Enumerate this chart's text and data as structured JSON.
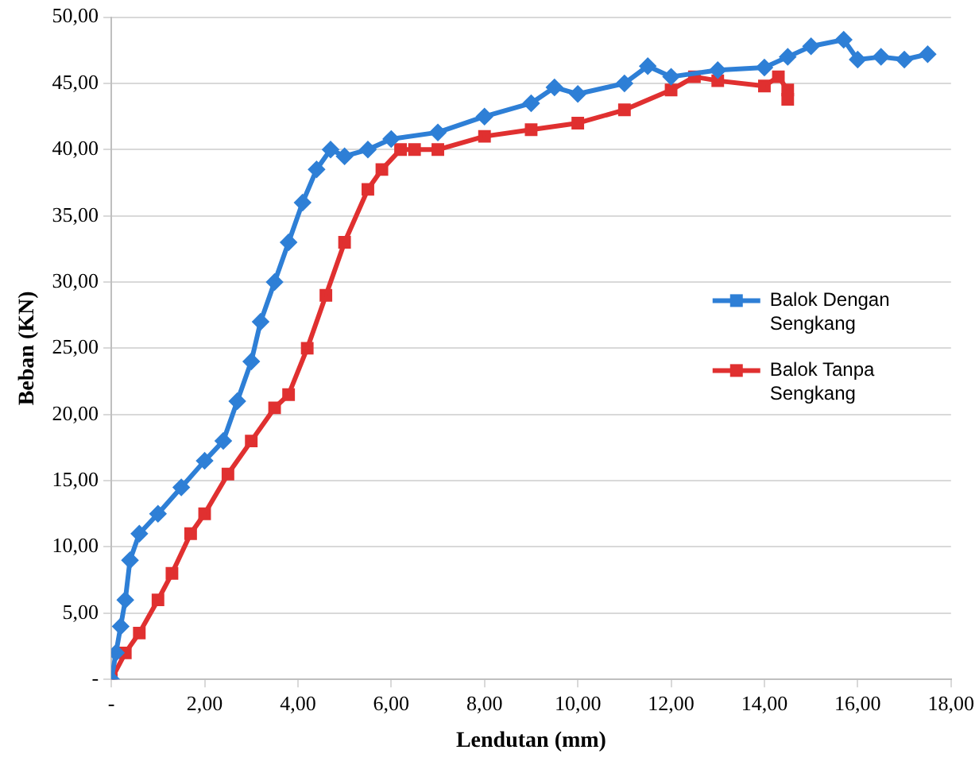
{
  "chart_data": {
    "type": "line",
    "xlabel": "Lendutan (mm)",
    "ylabel": "Beban (KN)",
    "xlim": [
      0,
      18
    ],
    "ylim": [
      0,
      50
    ],
    "xticks": [
      {
        "value": 0,
        "label": "-"
      },
      {
        "value": 2,
        "label": "2,00"
      },
      {
        "value": 4,
        "label": "4,00"
      },
      {
        "value": 6,
        "label": "6,00"
      },
      {
        "value": 8,
        "label": "8,00"
      },
      {
        "value": 10,
        "label": "10,00"
      },
      {
        "value": 12,
        "label": "12,00"
      },
      {
        "value": 14,
        "label": "14,00"
      },
      {
        "value": 16,
        "label": "16,00"
      },
      {
        "value": 18,
        "label": "18,00"
      }
    ],
    "yticks": [
      {
        "value": 0,
        "label": "-"
      },
      {
        "value": 5,
        "label": "5,00"
      },
      {
        "value": 10,
        "label": "10,00"
      },
      {
        "value": 15,
        "label": "15,00"
      },
      {
        "value": 20,
        "label": "20,00"
      },
      {
        "value": 25,
        "label": "25,00"
      },
      {
        "value": 30,
        "label": "30,00"
      },
      {
        "value": 35,
        "label": "35,00"
      },
      {
        "value": 40,
        "label": "40,00"
      },
      {
        "value": 45,
        "label": "45,00"
      },
      {
        "value": 50,
        "label": "50,00"
      }
    ],
    "grid": "y",
    "legend": "right",
    "series": [
      {
        "name": "Balok Dengan Sengkang",
        "color": "#2e7fd6",
        "marker": "diamond",
        "x": [
          0,
          0.1,
          0.2,
          0.3,
          0.4,
          0.6,
          1.0,
          1.5,
          2.0,
          2.4,
          2.7,
          3.0,
          3.2,
          3.5,
          3.8,
          4.1,
          4.4,
          4.7,
          5.0,
          5.5,
          6.0,
          7.0,
          8.0,
          9.0,
          9.5,
          10,
          11,
          11.5,
          12,
          13,
          14,
          14.5,
          15,
          15.7,
          16,
          16.5,
          17,
          17.5
        ],
        "values": [
          0,
          2,
          4,
          6,
          9,
          11,
          12.5,
          14.5,
          16.5,
          18,
          21,
          24,
          27,
          30,
          33,
          36,
          38.5,
          40,
          39.5,
          40,
          40.8,
          41.3,
          42.5,
          43.5,
          44.7,
          44.2,
          45,
          46.3,
          45.5,
          46,
          46.2,
          47,
          47.8,
          48.3,
          46.8,
          47,
          46.8,
          47.2
        ]
      },
      {
        "name": "Balok Tanpa Sengkang",
        "color": "#e03030",
        "marker": "square",
        "x": [
          0,
          0.3,
          0.6,
          1.0,
          1.3,
          1.7,
          2.0,
          2.5,
          3.0,
          3.5,
          3.8,
          4.2,
          4.6,
          5.0,
          5.5,
          5.8,
          6.2,
          6.5,
          7,
          8,
          9,
          10,
          11,
          12,
          12.5,
          13,
          14,
          14.3,
          14.5,
          14.5
        ],
        "values": [
          0,
          2,
          3.5,
          6,
          8,
          11,
          12.5,
          15.5,
          18,
          20.5,
          21.5,
          25,
          29,
          33,
          37,
          38.5,
          40,
          40,
          40,
          41,
          41.5,
          42,
          43,
          44.5,
          45.5,
          45.2,
          44.8,
          45.5,
          44.5,
          43.8
        ]
      }
    ]
  }
}
